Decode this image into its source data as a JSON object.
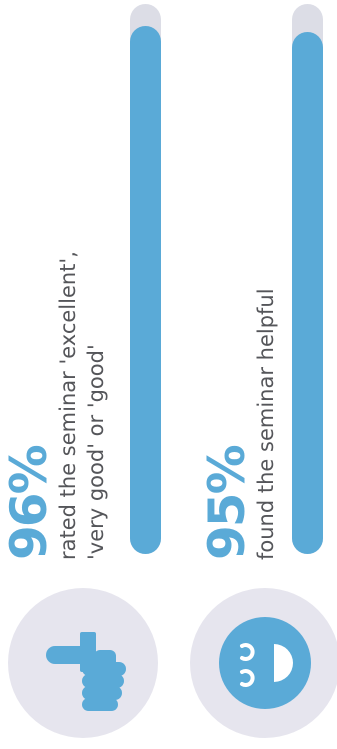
{
  "chart_data": {
    "type": "bar",
    "orientation": "vertical",
    "categories": [
      "rated the seminar 'excellent', 'very good' or 'good'",
      "found the seminar helpful"
    ],
    "values": [
      96,
      95
    ],
    "ylim": [
      0,
      100
    ]
  },
  "stats": [
    {
      "percent_label": "96%",
      "desc_line1": "rated the seminar 'excellent',",
      "desc_line2": "'very good' or 'good'",
      "icon": "thumbs-up-icon"
    },
    {
      "percent_label": "95%",
      "desc_line1": "found the seminar helpful",
      "desc_line2": "",
      "icon": "smiley-face-icon"
    }
  ],
  "colors": {
    "accent": "#5aaad7",
    "track": "#dcdde6",
    "text": "#55565a",
    "icon_bg": "#e6e5ee"
  }
}
